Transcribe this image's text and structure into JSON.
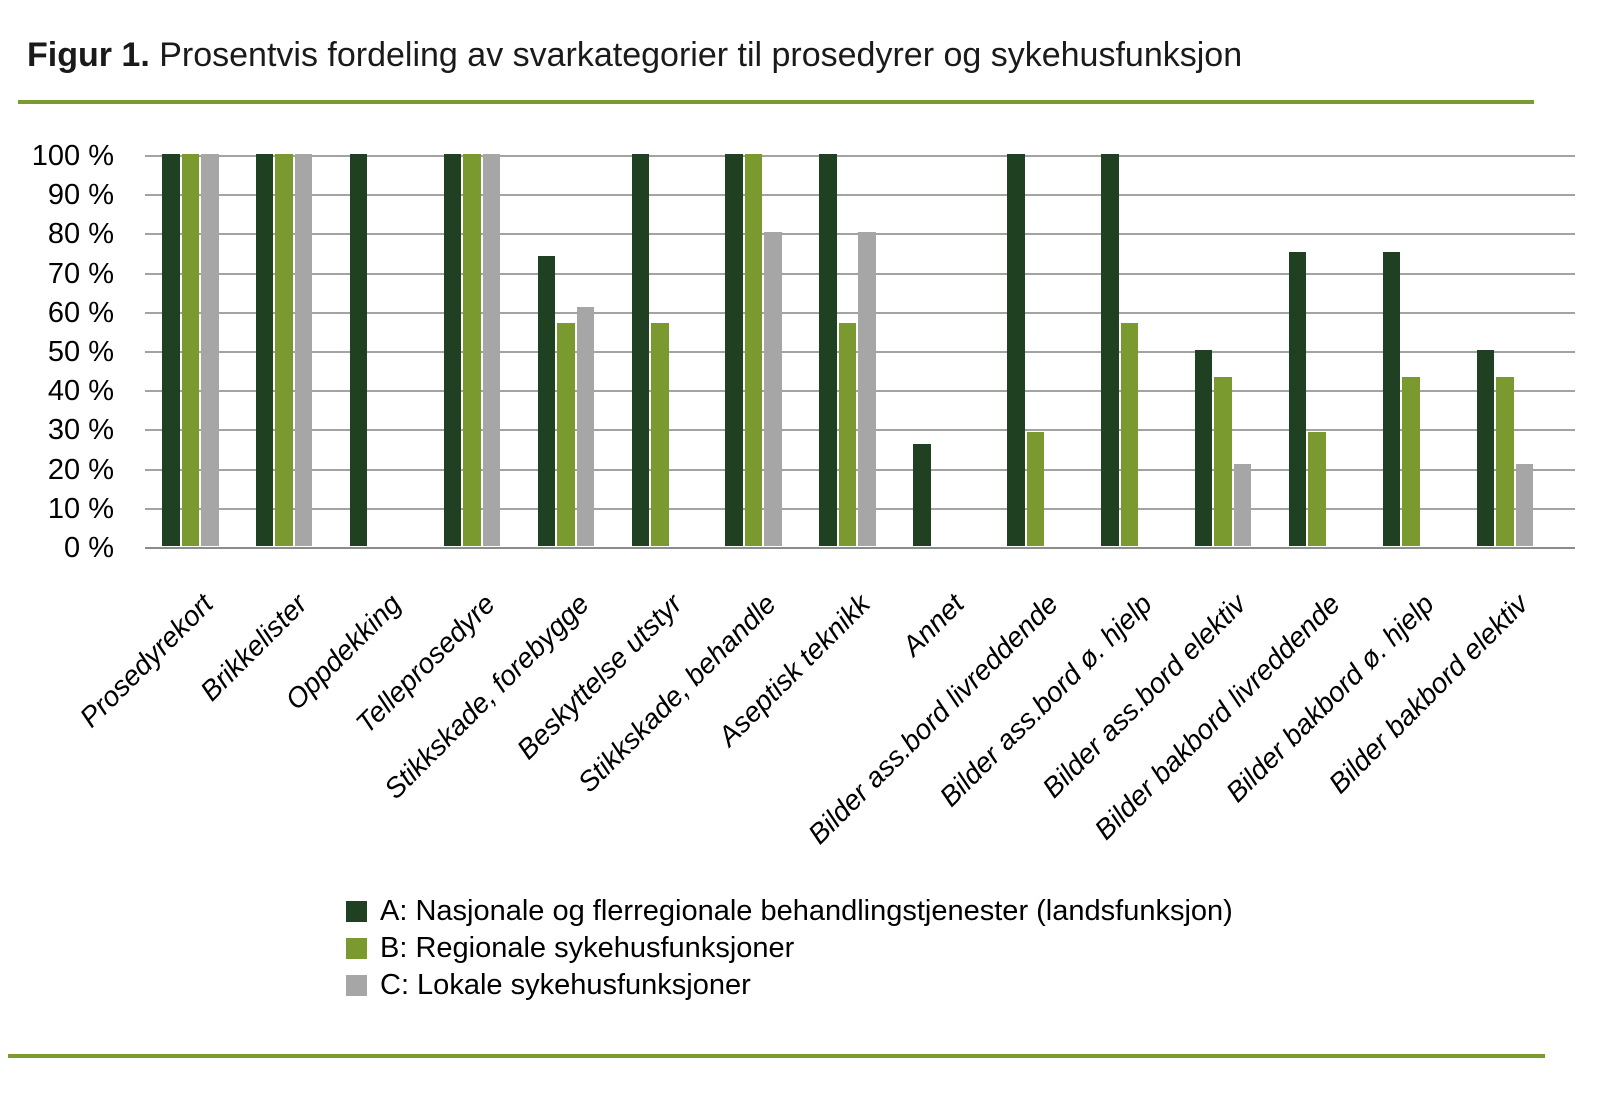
{
  "figure": {
    "title_prefix": "Figur 1.",
    "title_rest": " Prosentvis fordeling av svarkategorier til prosedyrer og sykehusfunksjon"
  },
  "colors": {
    "series_a": "#1f4122",
    "series_b": "#7a9a2f",
    "series_c": "#a6a6a6",
    "accent_rule": "#7a9b2f",
    "gridline": "#a3a3a3"
  },
  "chart_data": {
    "type": "bar",
    "title": "Prosentvis fordeling av svarkategorier til prosedyrer og sykehusfunksjon",
    "xlabel": "",
    "ylabel": "",
    "ylim": [
      0,
      100
    ],
    "grid": true,
    "legend_position": "bottom-left",
    "x_tick_rotation": 45,
    "y_ticks": [
      "100 %",
      "90 %",
      "80 %",
      "70 %",
      "60 %",
      "50 %",
      "40 %",
      "30 %",
      "20 %",
      "10 %",
      "0 %"
    ],
    "categories": [
      "Prosedyrekort",
      "Brikkelister",
      "Oppdekking",
      "Telleprosedyre",
      "Stikkskade, forebygge",
      "Beskyttelse utstyr",
      "Stikkskade, behandle",
      "Aseptisk teknikk",
      "Annet",
      "Bilder ass.bord livreddende",
      "Bilder ass.bord ø. hjelp",
      "Bilder ass.bord elektiv",
      "Bilder bakbord livreddende",
      "Bilder bakbord ø. hjelp",
      "Bilder bakbord elektiv"
    ],
    "series": [
      {
        "name": "A: Nasjonale og flerregionale behandlingstjenester (landsfunksjon)",
        "color": "#1f4122",
        "values": [
          100,
          100,
          100,
          100,
          74,
          100,
          100,
          100,
          26,
          100,
          100,
          50,
          75,
          75,
          50
        ]
      },
      {
        "name": "B: Regionale sykehusfunksjoner",
        "color": "#7a9a2f",
        "values": [
          100,
          100,
          null,
          100,
          57,
          57,
          100,
          57,
          null,
          29,
          57,
          43,
          29,
          43,
          43
        ]
      },
      {
        "name": "C: Lokale sykehusfunksjoner",
        "color": "#a6a6a6",
        "values": [
          100,
          100,
          null,
          100,
          61,
          null,
          80,
          80,
          null,
          null,
          null,
          21,
          null,
          null,
          21
        ]
      }
    ]
  }
}
